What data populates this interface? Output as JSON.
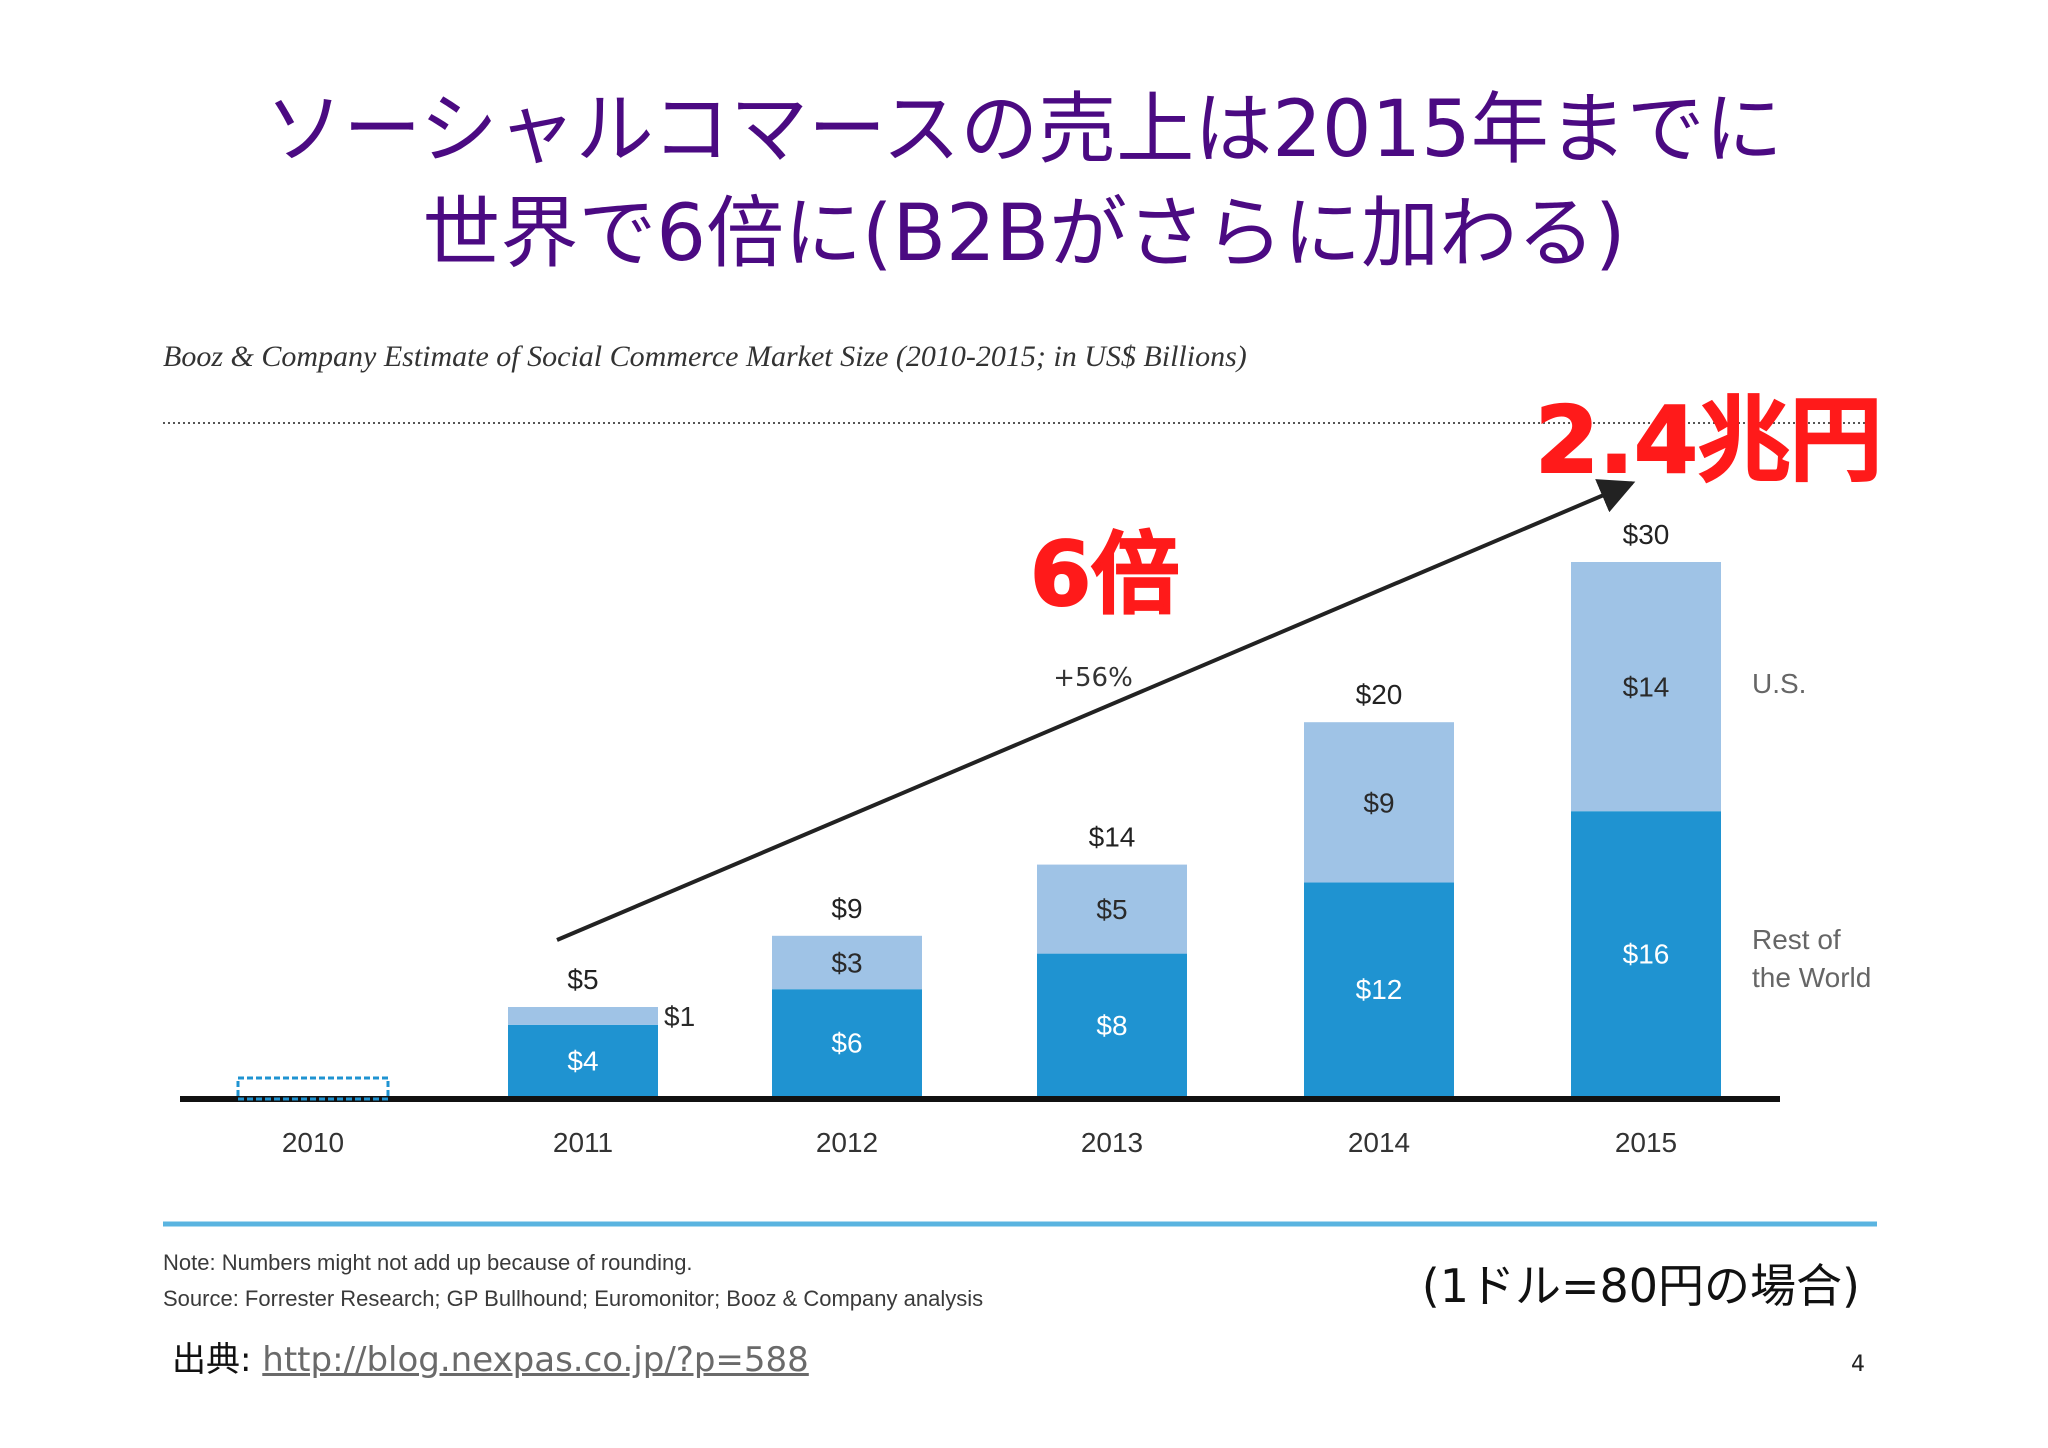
{
  "slide": {
    "title_line1": "ソーシャルコマースの売上は2015年までに",
    "title_line2": "世界で6倍に(B2Bがさらに加わる)",
    "exchange_note": "(1ドル=80円の場合)",
    "source_label": "出典:",
    "source_url": "http://blog.nexpas.co.jp/?p=588",
    "page_number": "4"
  },
  "annotations": {
    "multiplier": "6倍",
    "total_jpy": "2.4兆円"
  },
  "colors": {
    "title": "#4b0a82",
    "us": "#9fc3e6",
    "rest_of_world": "#1f93d1",
    "annotation": "#ff1a1a",
    "divider": "#5ab4e0"
  },
  "chart_data": {
    "type": "bar",
    "stacked": true,
    "title": "Booz & Company Estimate of Social Commerce Market Size (2010-2015; in US$ Billions)",
    "categories": [
      "2010",
      "2011",
      "2012",
      "2013",
      "2014",
      "2015"
    ],
    "series": [
      {
        "name": "Rest of the World",
        "values": [
          0,
          4,
          6,
          8,
          12,
          16
        ],
        "labels": [
          "",
          "$4",
          "$6",
          "$8",
          "$12",
          "$16"
        ]
      },
      {
        "name": "U.S.",
        "values": [
          0,
          1,
          3,
          5,
          9,
          14
        ],
        "labels": [
          "",
          "$1",
          "$3",
          "$5",
          "$9",
          "$14"
        ]
      }
    ],
    "totals": [
      "",
      "$5",
      "$9",
      "$14",
      "$20",
      "$30"
    ],
    "growth_label": "+56%",
    "ylim": [
      0,
      30
    ],
    "grid": false,
    "legend": "right",
    "notes": [
      "Note: Numbers might not add up because of rounding.",
      "Source: Forrester Research; GP Bullhound; Euromonitor; Booz & Company analysis"
    ]
  }
}
